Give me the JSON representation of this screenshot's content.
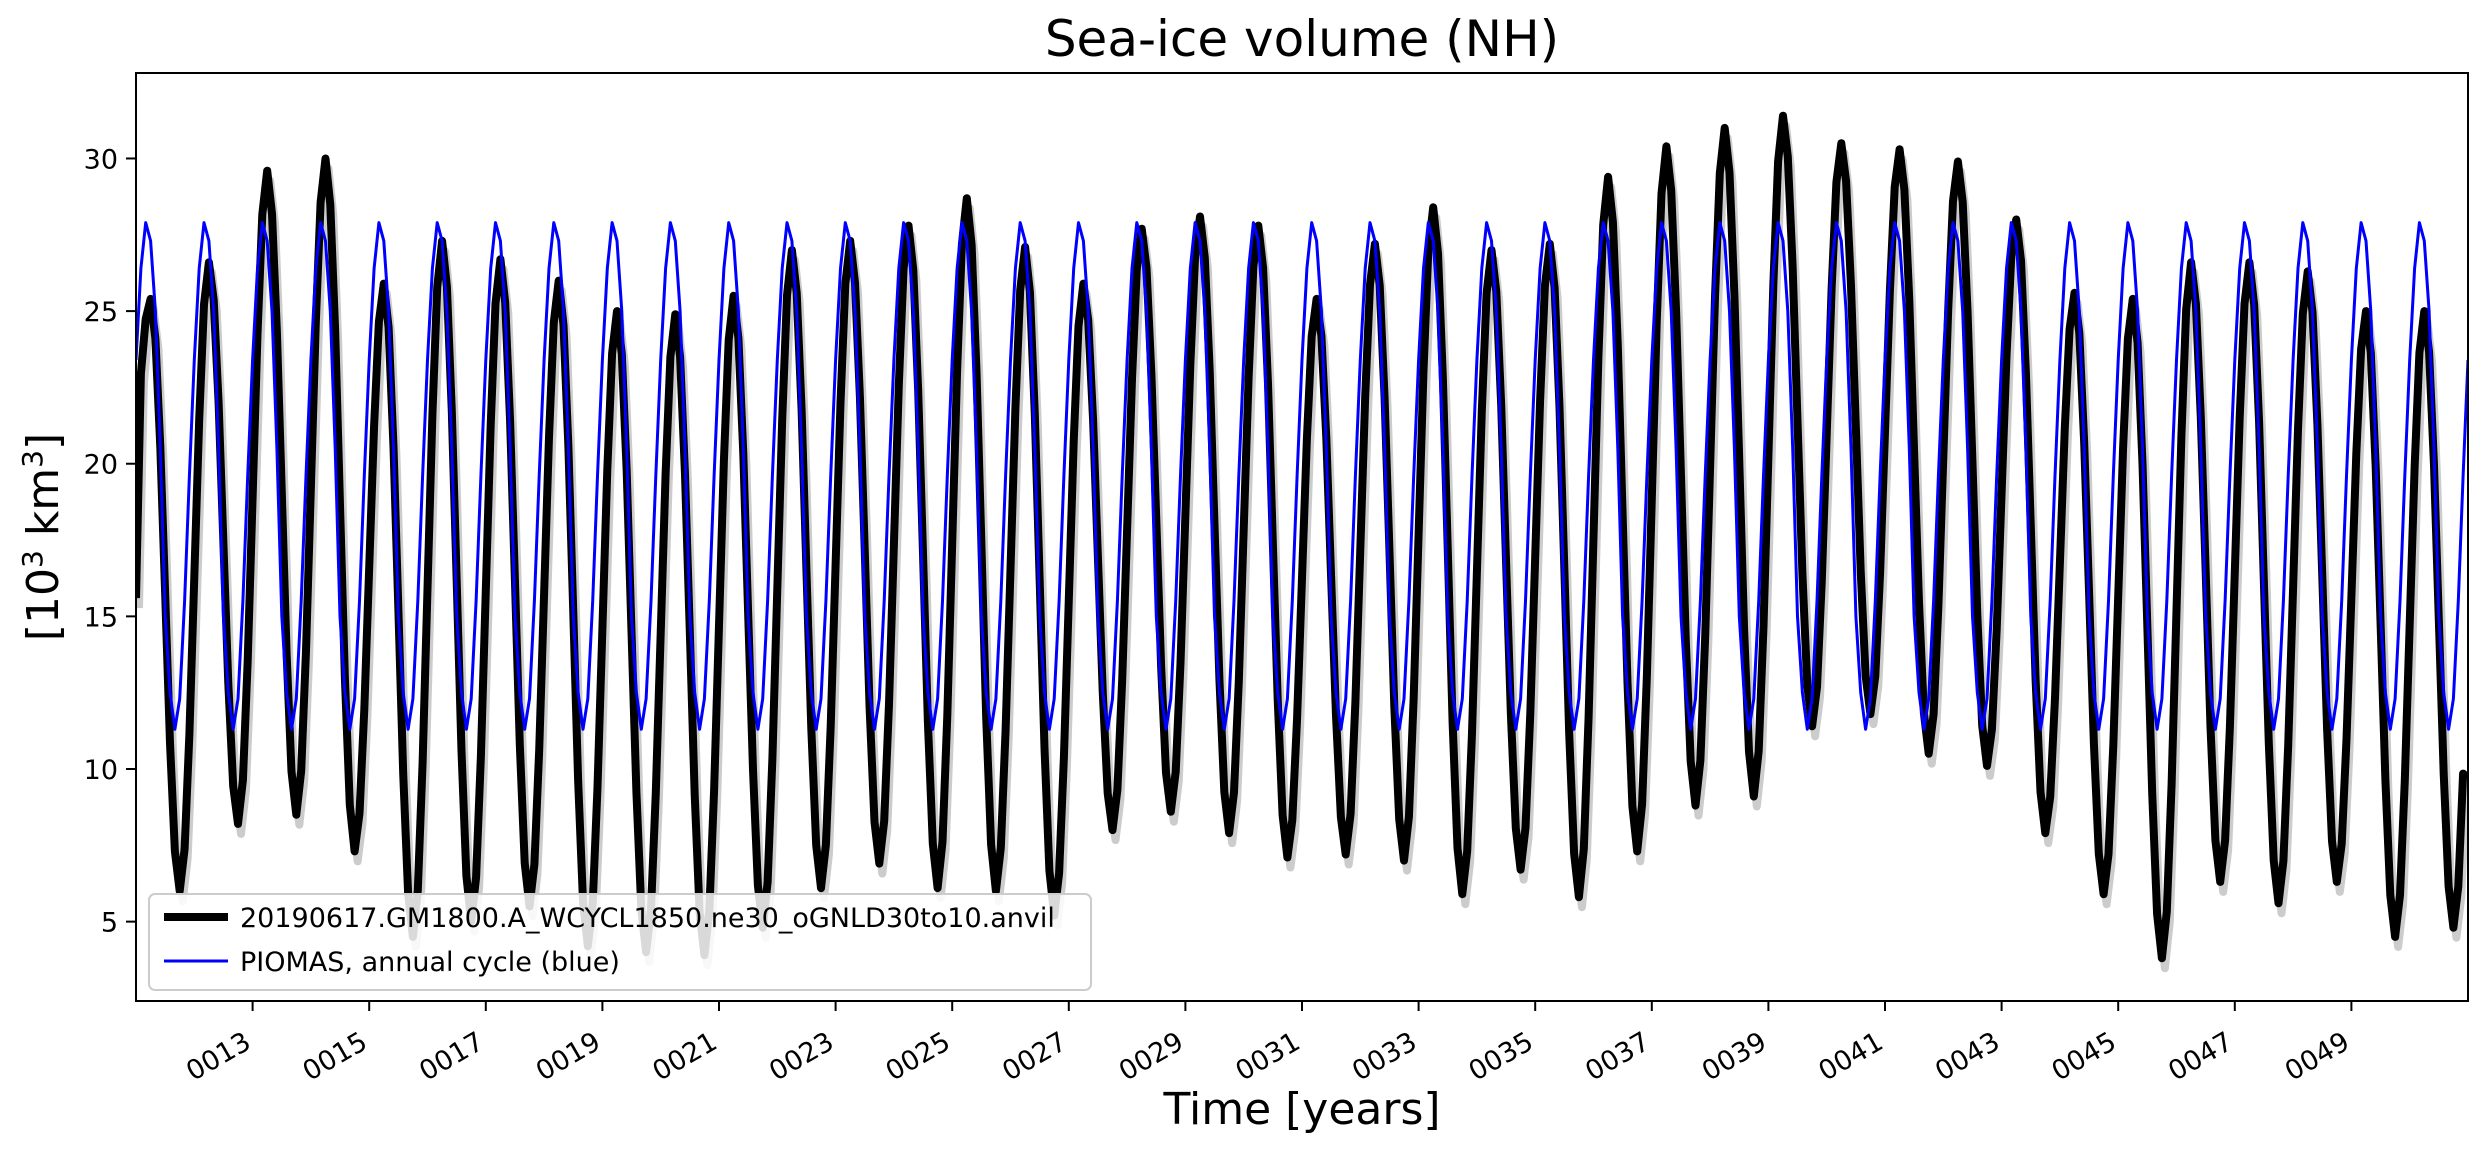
{
  "chart_data": {
    "type": "line",
    "title": "Sea-ice volume (NH)",
    "xlabel": "Time [years]",
    "ylabel": "[10³ km³]",
    "ylabel_parts": {
      "open": "[10",
      "exp1": "3",
      "mid": " km",
      "exp2": "3",
      "close": "]"
    },
    "xlim": [
      11.0,
      51.0
    ],
    "ylim": [
      2.4,
      32.8
    ],
    "y_ticks": [
      5,
      10,
      15,
      20,
      25,
      30
    ],
    "x_ticks": [
      {
        "value": 13,
        "label": "0013"
      },
      {
        "value": 15,
        "label": "0015"
      },
      {
        "value": 17,
        "label": "0017"
      },
      {
        "value": 19,
        "label": "0019"
      },
      {
        "value": 21,
        "label": "0021"
      },
      {
        "value": 23,
        "label": "0023"
      },
      {
        "value": 25,
        "label": "0025"
      },
      {
        "value": 27,
        "label": "0027"
      },
      {
        "value": 29,
        "label": "0029"
      },
      {
        "value": 31,
        "label": "0031"
      },
      {
        "value": 33,
        "label": "0033"
      },
      {
        "value": 35,
        "label": "0035"
      },
      {
        "value": 37,
        "label": "0037"
      },
      {
        "value": 39,
        "label": "0039"
      },
      {
        "value": 41,
        "label": "0041"
      },
      {
        "value": 43,
        "label": "0043"
      },
      {
        "value": 45,
        "label": "0045"
      },
      {
        "value": 47,
        "label": "0047"
      },
      {
        "value": 49,
        "label": "0049"
      }
    ],
    "grid": false,
    "legend_position": "lower-left",
    "series": [
      {
        "name": "20190617.GM1800.A_WCYCL1850.ne30_oGNLD30to10.anvil",
        "color": "#000000",
        "style": "thick",
        "start_year": 11.0,
        "x_end": 51.0,
        "start_value": 15.6,
        "end_value": 9.7,
        "yearly_max": [
          25.4,
          26.6,
          29.6,
          30.0,
          25.9,
          27.3,
          26.7,
          26.0,
          25.0,
          24.9,
          25.5,
          27.0,
          27.3,
          27.8,
          28.7,
          27.1,
          25.9,
          27.7,
          28.1,
          27.8,
          25.4,
          27.2,
          28.4,
          27.0,
          27.2,
          29.4,
          30.4,
          31.0,
          31.4,
          30.5,
          30.3,
          29.9,
          28.0,
          25.6,
          25.4,
          26.6,
          26.6,
          26.3,
          25.0
        ],
        "yearly_min": [
          6.0,
          8.2,
          8.5,
          7.3,
          4.5,
          5.0,
          5.5,
          4.2,
          4.0,
          3.9,
          4.8,
          6.1,
          6.9,
          6.1,
          6.0,
          5.2,
          8.0,
          8.6,
          7.9,
          7.1,
          7.2,
          7.0,
          5.9,
          6.7,
          5.8,
          7.3,
          8.8,
          9.1,
          11.4,
          11.8,
          10.5,
          10.1,
          7.9,
          5.9,
          3.8,
          6.3,
          5.6,
          6.3,
          4.5,
          4.8
        ]
      },
      {
        "name": "PIOMAS, annual cycle (blue)",
        "color": "#0000ff",
        "style": "thin",
        "monthly": [
          23.4,
          26.4,
          27.9,
          27.3,
          25.0,
          20.5,
          15.0,
          12.5,
          11.3,
          12.3,
          15.5,
          19.6
        ]
      }
    ]
  },
  "shadow_series_color": "#cccccc"
}
